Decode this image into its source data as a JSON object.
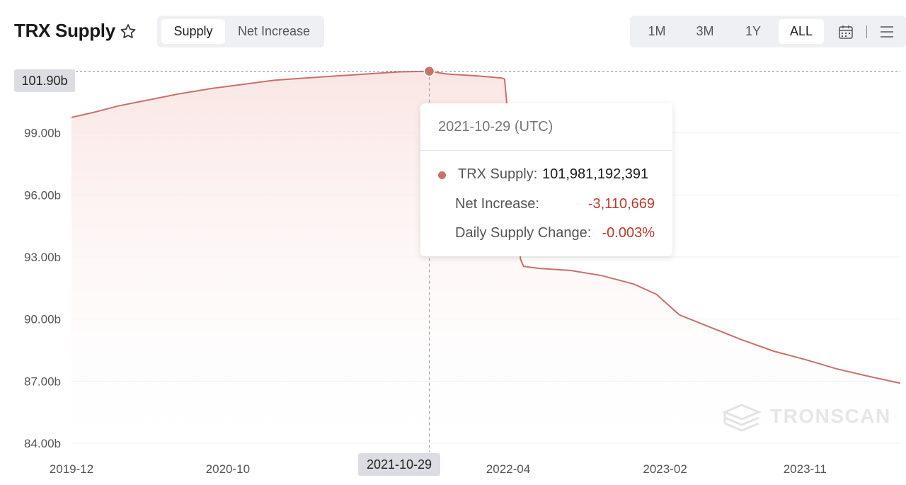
{
  "header": {
    "title": "TRX Supply",
    "star_icon": "star-outline-icon"
  },
  "tabs": [
    {
      "label": "Supply",
      "active": true
    },
    {
      "label": "Net Increase",
      "active": false
    }
  ],
  "time_range": {
    "options": [
      "1M",
      "3M",
      "1Y",
      "ALL"
    ],
    "selected": "ALL",
    "calendar_icon": "calendar-icon",
    "menu_icon": "hamburger-menu-icon"
  },
  "crosshair": {
    "y_label": "101.90b",
    "x_label": "2021-10-29"
  },
  "tooltip": {
    "date": "2021-10-29 (UTC)",
    "supply_label": "TRX Supply:",
    "supply_value": "101,981,192,391",
    "net_label": "Net Increase:",
    "net_value": "-3,110,669",
    "change_label": "Daily Supply Change:",
    "change_value": "-0.003%"
  },
  "watermark": "TRONSCAN",
  "colors": {
    "line": "#c9706a",
    "area_top": "#fbe9e8",
    "negative": "#c0392b",
    "grid": "#efefef"
  },
  "chart_data": {
    "type": "area",
    "ylabel": "",
    "xlabel": "",
    "ylim": [
      84,
      102
    ],
    "ytick_labels": [
      "84.00b",
      "87.00b",
      "90.00b",
      "93.00b",
      "96.00b",
      "99.00b"
    ],
    "yticks": [
      84,
      87,
      90,
      93,
      96,
      99
    ],
    "xtick_labels": [
      "2019-12",
      "2020-10",
      "2021-",
      "2022-04",
      "2023-02",
      "2023-11"
    ],
    "xticks": [
      "2019-12-01",
      "2020-10-01",
      "2021-08-01",
      "2022-04-01",
      "2023-02-01",
      "2023-11-01"
    ],
    "series": [
      {
        "x": [
          "2019-12-01",
          "2020-01-15",
          "2020-03-01",
          "2020-05-01",
          "2020-07-01",
          "2020-09-01",
          "2020-11-01",
          "2021-01-01",
          "2021-03-01",
          "2021-05-01",
          "2021-07-01",
          "2021-09-01",
          "2021-10-29",
          "2021-12-01",
          "2022-02-01",
          "2022-03-20",
          "2022-03-25",
          "2022-04-25",
          "2022-05-01",
          "2022-06-01",
          "2022-08-01",
          "2022-10-01",
          "2022-12-01",
          "2023-01-15",
          "2023-03-01",
          "2023-05-01",
          "2023-07-01",
          "2023-09-01",
          "2023-11-01",
          "2024-01-01",
          "2024-03-01",
          "2024-05-05"
        ],
        "values": [
          99.75,
          100.0,
          100.3,
          100.6,
          100.9,
          101.15,
          101.35,
          101.55,
          101.65,
          101.75,
          101.85,
          101.95,
          101.98,
          101.85,
          101.75,
          101.65,
          101.6,
          92.9,
          92.55,
          92.45,
          92.35,
          92.1,
          91.7,
          91.2,
          90.2,
          89.6,
          89.0,
          88.45,
          88.05,
          87.6,
          87.25,
          86.9
        ]
      }
    ],
    "highlight": {
      "x": "2021-10-29",
      "y": 101.98
    },
    "grid": true
  }
}
